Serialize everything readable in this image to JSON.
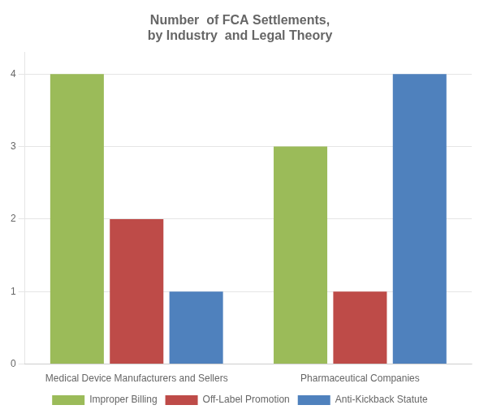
{
  "chart_data": {
    "type": "bar",
    "title": "Number  of FCA Settlements,\nby Industry  and Legal Theory",
    "categories": [
      "Medical Device Manufacturers and Sellers",
      "Pharmaceutical Companies"
    ],
    "series": [
      {
        "name": "Improper Billing",
        "values": [
          4,
          3
        ],
        "color": "#9BBB59"
      },
      {
        "name": "Off-Label Promotion",
        "values": [
          2,
          1
        ],
        "color": "#BE4B48"
      },
      {
        "name": "Anti-Kickback Statute",
        "values": [
          1,
          4
        ],
        "color": "#4F81BD"
      }
    ],
    "ylim": [
      0,
      4.3
    ],
    "yticks": [
      0,
      1,
      2,
      3,
      4
    ],
    "grid": true,
    "legend": "bottom"
  }
}
